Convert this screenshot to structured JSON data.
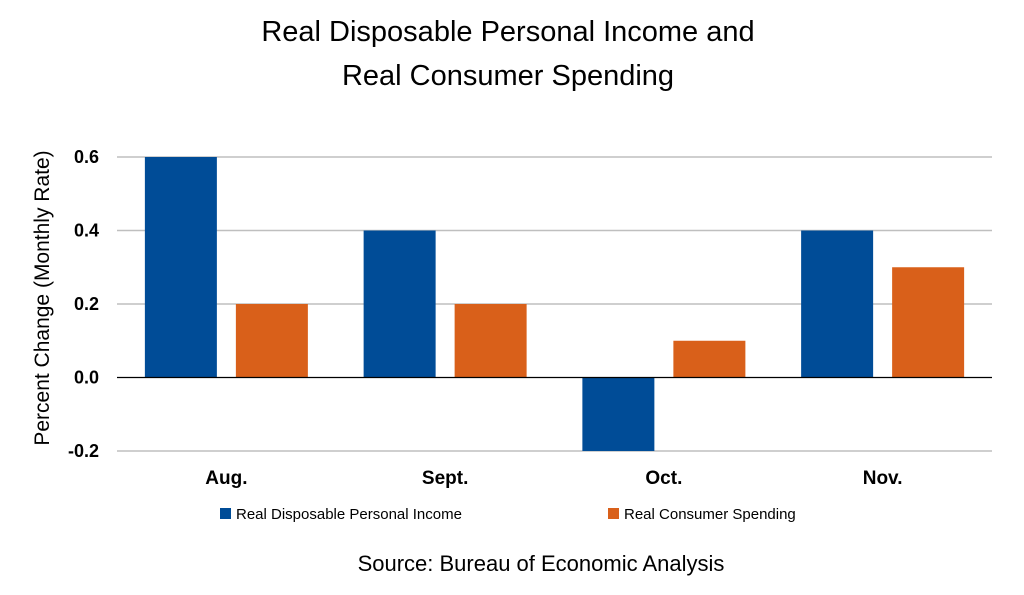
{
  "chart_data": {
    "type": "bar",
    "title_lines": [
      "Real Disposable Personal Income and",
      "Real Consumer Spending"
    ],
    "xlabel": "",
    "ylabel": "Percent Change (Monthly Rate)",
    "categories": [
      "Aug.",
      "Sept.",
      "Oct.",
      "Nov."
    ],
    "series": [
      {
        "name": "Real Disposable Personal Income",
        "color": "#004c97",
        "values": [
          0.6,
          0.4,
          -0.2,
          0.4
        ]
      },
      {
        "name": "Real Consumer Spending",
        "color": "#d9601a",
        "values": [
          0.2,
          0.2,
          0.1,
          0.3
        ]
      }
    ],
    "ylim": [
      -0.2,
      0.6
    ],
    "yticks": [
      0.6,
      0.4,
      0.2,
      0.0,
      -0.2
    ],
    "ytick_labels": [
      "0.6",
      "0.4",
      "0.2",
      "0.0",
      "-0.2"
    ],
    "grid": true,
    "legend_position": "bottom",
    "source": "Source:  Bureau of Economic Analysis"
  }
}
